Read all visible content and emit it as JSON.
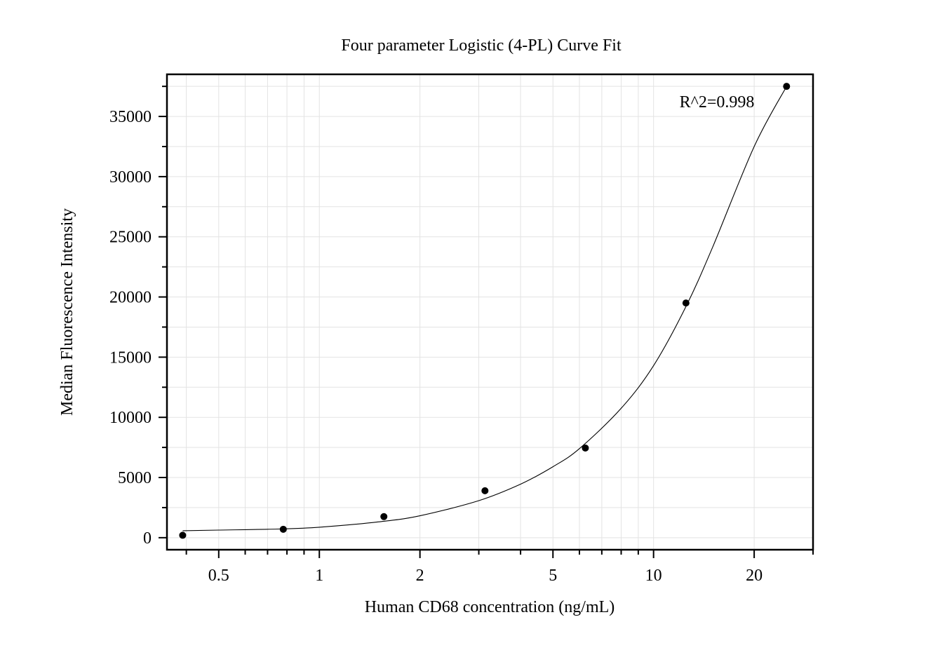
{
  "chart_data": {
    "type": "scatter",
    "title": "Four parameter Logistic (4-PL) Curve Fit",
    "xlabel": "Human CD68 concentration (ng/mL)",
    "ylabel": "Median Fluorescence Intensity",
    "x_scale": "log",
    "xlim": [
      0.35,
      30
    ],
    "ylim": [
      -1000,
      38500
    ],
    "x_ticks": [
      0.5,
      1,
      2,
      5,
      10,
      20
    ],
    "x_tick_labels": [
      "0.5",
      "1",
      "2",
      "5",
      "10",
      "20"
    ],
    "y_ticks": [
      0,
      5000,
      10000,
      15000,
      20000,
      25000,
      30000,
      35000
    ],
    "y_tick_labels": [
      "0",
      "5000",
      "10000",
      "15000",
      "20000",
      "25000",
      "30000",
      "35000"
    ],
    "grid": true,
    "series": [
      {
        "type": "scatter",
        "x": [
          0.39,
          0.78,
          1.56,
          3.13,
          6.25,
          12.5,
          25
        ],
        "y": [
          200,
          700,
          1750,
          3900,
          7450,
          19500,
          37500
        ]
      },
      {
        "type": "line",
        "x": [
          0.39,
          0.5,
          0.75,
          1,
          1.5,
          2,
          3,
          4,
          5,
          6,
          8,
          10,
          12.5,
          15,
          20,
          25
        ],
        "y": [
          580,
          630,
          720,
          870,
          1310,
          1820,
          3080,
          4450,
          5900,
          7400,
          10750,
          14300,
          19200,
          24100,
          32500,
          37500
        ]
      }
    ],
    "annotations": [
      {
        "text": "R^2=0.998",
        "position": "top-right"
      }
    ]
  }
}
